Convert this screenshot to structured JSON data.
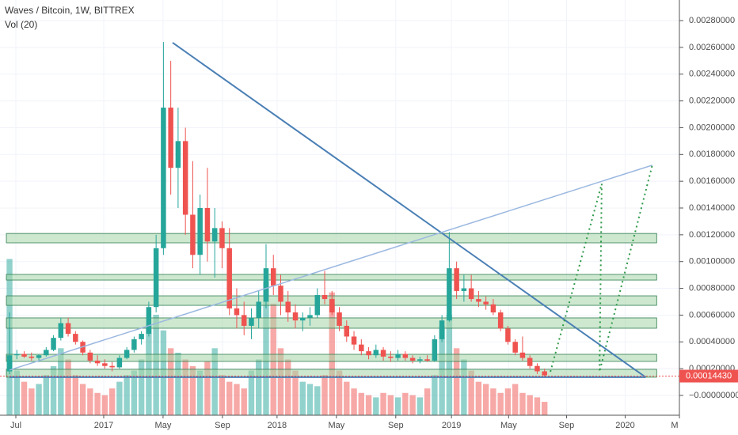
{
  "chart_data": {
    "type": "candlestick",
    "title": "Waves / Bitcoin, 1W, BITTREX",
    "subtitle": "Vol (20)",
    "up_color": "#26a69a",
    "down_color": "#ef5350",
    "grid": true,
    "xlim": [
      -1.3,
      91.4
    ],
    "xticks": [
      {
        "value": 0.86,
        "label": "Jul"
      },
      {
        "value": 12.85,
        "label": "2017"
      },
      {
        "value": 20.95,
        "label": "May"
      },
      {
        "value": 29.05,
        "label": "Sep"
      },
      {
        "value": 36.5,
        "label": "2018"
      },
      {
        "value": 44.6,
        "label": "May"
      },
      {
        "value": 52.7,
        "label": "Sep"
      },
      {
        "value": 60.3,
        "label": "2019"
      },
      {
        "value": 68.1,
        "label": "May"
      },
      {
        "value": 76.0,
        "label": "Sep"
      },
      {
        "value": 84.0,
        "label": "2020"
      },
      {
        "value": 91.4,
        "label": "M"
      }
    ],
    "ylim": [
      -0.000148,
      0.002954
    ],
    "yticks": [
      {
        "value": 0,
        "label": "−0.00000000"
      },
      {
        "value": 0.0002,
        "label": "0.00020000"
      },
      {
        "value": 0.0004,
        "label": "0.00040000"
      },
      {
        "value": 0.0006,
        "label": "0.00060000"
      },
      {
        "value": 0.0008,
        "label": "0.00080000"
      },
      {
        "value": 0.001,
        "label": "0.00100000"
      },
      {
        "value": 0.0012,
        "label": "0.00120000"
      },
      {
        "value": 0.0014,
        "label": "0.00140000"
      },
      {
        "value": 0.0016,
        "label": "0.00160000"
      },
      {
        "value": 0.0018,
        "label": "0.00180000"
      },
      {
        "value": 0.002,
        "label": "0.00200000"
      },
      {
        "value": 0.0022,
        "label": "0.00220000"
      },
      {
        "value": 0.0024,
        "label": "0.00240000"
      },
      {
        "value": 0.0026,
        "label": "0.00260000"
      },
      {
        "value": 0.0028,
        "label": "0.00280000"
      }
    ],
    "last_price": 0.0001443,
    "last_price_label": "0.00014430",
    "ohlc": [
      [
        0.00018,
        0.00062,
        0.00016,
        0.0003
      ],
      [
        0.0003,
        0.00034,
        0.00027,
        0.00031
      ],
      [
        0.00031,
        0.00033,
        0.00028,
        0.00029
      ],
      [
        0.00029,
        0.00032,
        0.00026,
        0.00028
      ],
      [
        0.00028,
        0.00031,
        0.00025,
        0.0003
      ],
      [
        0.0003,
        0.00036,
        0.00029,
        0.00034
      ],
      [
        0.00034,
        0.00045,
        0.00033,
        0.00043
      ],
      [
        0.00043,
        0.00058,
        0.00041,
        0.00054
      ],
      [
        0.00054,
        0.00058,
        0.00044,
        0.00046
      ],
      [
        0.00046,
        0.00048,
        0.00038,
        0.0004
      ],
      [
        0.0004,
        0.00041,
        0.0003,
        0.00032
      ],
      [
        0.00032,
        0.00034,
        0.00024,
        0.00026
      ],
      [
        0.00026,
        0.0003,
        0.00022,
        0.00024
      ],
      [
        0.00024,
        0.00027,
        0.0002,
        0.00022
      ],
      [
        0.00022,
        0.00025,
        0.00018,
        0.00021
      ],
      [
        0.00021,
        0.0003,
        0.0002,
        0.00028
      ],
      [
        0.00028,
        0.00036,
        0.00027,
        0.00034
      ],
      [
        0.00034,
        0.00044,
        0.00032,
        0.00042
      ],
      [
        0.00042,
        0.00048,
        0.00038,
        0.00046
      ],
      [
        0.00046,
        0.0007,
        0.00044,
        0.00066
      ],
      [
        0.00066,
        0.0012,
        0.00062,
        0.0011
      ],
      [
        0.0011,
        0.00264,
        0.00105,
        0.00215
      ],
      [
        0.00215,
        0.0025,
        0.0015,
        0.0017
      ],
      [
        0.0017,
        0.00215,
        0.0014,
        0.0019
      ],
      [
        0.0019,
        0.002,
        0.0012,
        0.00135
      ],
      [
        0.00135,
        0.00175,
        0.00095,
        0.00105
      ],
      [
        0.00105,
        0.0015,
        0.0009,
        0.0014
      ],
      [
        0.0014,
        0.0017,
        0.001,
        0.00115
      ],
      [
        0.00115,
        0.0014,
        0.00088,
        0.00125
      ],
      [
        0.00125,
        0.0013,
        0.00095,
        0.0011
      ],
      [
        0.0011,
        0.00125,
        0.0006,
        0.00065
      ],
      [
        0.00065,
        0.0008,
        0.0005,
        0.0006
      ],
      [
        0.0006,
        0.0007,
        0.00045,
        0.00052
      ],
      [
        0.00052,
        0.00065,
        0.00042,
        0.00058
      ],
      [
        0.00058,
        0.00078,
        0.0005,
        0.0007
      ],
      [
        0.0007,
        0.00113,
        0.00065,
        0.00095
      ],
      [
        0.00095,
        0.00105,
        0.00075,
        0.00082
      ],
      [
        0.00082,
        0.0009,
        0.0006,
        0.0007
      ],
      [
        0.0007,
        0.00078,
        0.00055,
        0.00062
      ],
      [
        0.00062,
        0.00068,
        0.0005,
        0.00056
      ],
      [
        0.00056,
        0.00062,
        0.00048,
        0.00058
      ],
      [
        0.00058,
        0.00066,
        0.00052,
        0.0006
      ],
      [
        0.0006,
        0.0008,
        0.00058,
        0.00075
      ],
      [
        0.00075,
        0.00093,
        0.00068,
        0.00072
      ],
      [
        0.00072,
        0.00078,
        0.0006,
        0.00062
      ],
      [
        0.00062,
        0.00066,
        0.00048,
        0.00052
      ],
      [
        0.00052,
        0.00056,
        0.0004,
        0.00044
      ],
      [
        0.00044,
        0.00048,
        0.00034,
        0.00038
      ],
      [
        0.00038,
        0.00042,
        0.0003,
        0.00033
      ],
      [
        0.00033,
        0.00036,
        0.00027,
        0.0003
      ],
      [
        0.0003,
        0.00038,
        0.00028,
        0.00034
      ],
      [
        0.00034,
        0.00036,
        0.00026,
        0.00029
      ],
      [
        0.00029,
        0.00033,
        0.00025,
        0.00028
      ],
      [
        0.00028,
        0.00034,
        0.00026,
        0.00031
      ],
      [
        0.00031,
        0.00033,
        0.00026,
        0.00028
      ],
      [
        0.00028,
        0.0003,
        0.00024,
        0.00026
      ],
      [
        0.00026,
        0.00029,
        0.00024,
        0.00027
      ],
      [
        0.00027,
        0.0003,
        0.00025,
        0.00026
      ],
      [
        0.00026,
        0.00045,
        0.00025,
        0.00042
      ],
      [
        0.00042,
        0.0006,
        0.0004,
        0.00056
      ],
      [
        0.00056,
        0.00122,
        0.00055,
        0.00095
      ],
      [
        0.00095,
        0.001,
        0.00072,
        0.00078
      ],
      [
        0.00078,
        0.0009,
        0.0007,
        0.0008
      ],
      [
        0.0008,
        0.0009,
        0.0007,
        0.00072
      ],
      [
        0.00072,
        0.00078,
        0.00066,
        0.0007
      ],
      [
        0.0007,
        0.00074,
        0.00064,
        0.00068
      ],
      [
        0.00068,
        0.00072,
        0.0006,
        0.00062
      ],
      [
        0.00062,
        0.00064,
        0.00048,
        0.0005
      ],
      [
        0.0005,
        0.00052,
        0.00038,
        0.0004
      ],
      [
        0.0004,
        0.00042,
        0.0003,
        0.00032
      ],
      [
        0.00032,
        0.00044,
        0.00026,
        0.00028
      ],
      [
        0.00028,
        0.0003,
        0.0002,
        0.00022
      ],
      [
        0.00022,
        0.00024,
        0.00016,
        0.00018
      ],
      [
        0.00018,
        0.0002,
        0.00014,
        0.00015
      ]
    ],
    "volume": [
      70,
      20,
      15,
      12,
      14,
      18,
      22,
      30,
      25,
      18,
      14,
      12,
      10,
      9,
      12,
      15,
      18,
      20,
      25,
      40,
      45,
      38,
      30,
      28,
      25,
      22,
      20,
      24,
      30,
      18,
      15,
      14,
      12,
      20,
      25,
      60,
      50,
      30,
      25,
      20,
      15,
      14,
      13,
      18,
      55,
      20,
      15,
      12,
      10,
      9,
      8,
      10,
      9,
      8,
      10,
      9,
      8,
      12,
      18,
      40,
      45,
      30,
      25,
      20,
      15,
      14,
      12,
      10,
      12,
      14,
      10,
      9,
      8,
      6
    ],
    "vlim": [
      0,
      186
    ],
    "zones": [
      [
        0.00114,
        0.00121
      ],
      [
        0.000862,
        0.000904
      ],
      [
        0.000673,
        0.000744
      ],
      [
        0.000502,
        0.000579
      ],
      [
        0.000254,
        0.000307
      ],
      [
        0.000136,
        0.000195
      ]
    ],
    "zone_span": [
      -0.43,
      88.3
    ],
    "trendlines": [
      {
        "color": "#4a7fb5",
        "width": 2,
        "points": [
          [
            22.25,
            0.002635
          ],
          [
            86.8,
            0.000136
          ]
        ]
      },
      {
        "color": "#4a7fb5",
        "width": 2,
        "points": [
          [
            0,
            0.000136
          ],
          [
            86.8,
            0.000136
          ]
        ]
      },
      {
        "color": "#9bb8e0",
        "width": 1.5,
        "points": [
          [
            0,
            0.000189
          ],
          [
            87.7,
            0.00172
          ]
        ]
      },
      {
        "color": "#2e9a4a",
        "width": 2,
        "dotted": true,
        "points": [
          [
            73.8,
            0.000177
          ],
          [
            80.8,
            0.00158
          ],
          [
            80.5,
            0.000177
          ],
          [
            87.7,
            0.00172
          ]
        ]
      }
    ]
  }
}
